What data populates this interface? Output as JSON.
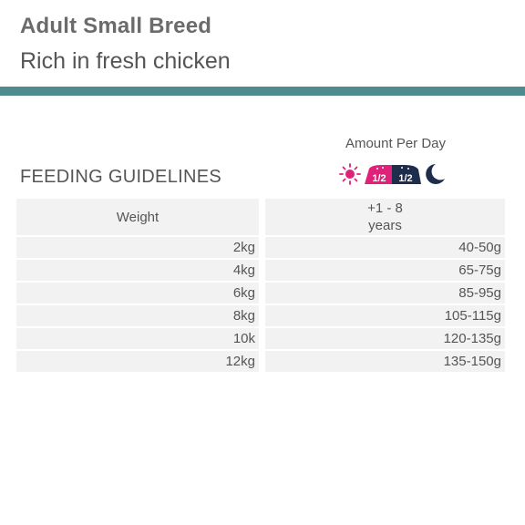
{
  "header": {
    "title": "Adult Small Breed",
    "subtitle": "Rich in fresh chicken"
  },
  "colors": {
    "band": "#4e8b90",
    "morning": "#e0217a",
    "evening": "#1f2d4d"
  },
  "amount_label": "Amount Per Day",
  "icons": {
    "sun_icon": "sun-icon",
    "moon_icon": "moon-icon",
    "morning_portion": "1/2",
    "evening_portion": "1/2"
  },
  "section_title": "FEEDING GUIDELINES",
  "table": {
    "col_weight": "Weight",
    "col_age": "+1 - 8\nyears",
    "rows": [
      {
        "weight": "2kg",
        "amount": "40-50g"
      },
      {
        "weight": "4kg",
        "amount": "65-75g"
      },
      {
        "weight": "6kg",
        "amount": "85-95g"
      },
      {
        "weight": "8kg",
        "amount": "105-115g"
      },
      {
        "weight": "10k",
        "amount": "120-135g"
      },
      {
        "weight": "12kg",
        "amount": "135-150g"
      }
    ]
  }
}
